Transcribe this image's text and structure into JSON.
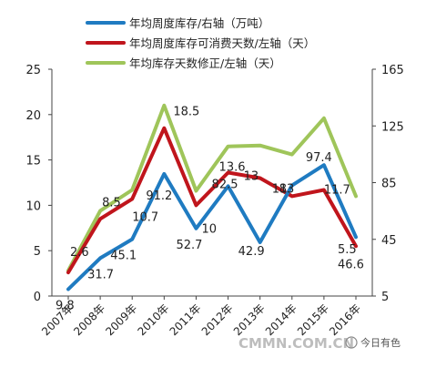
{
  "chart_data": {
    "type": "line",
    "categories": [
      "2007年",
      "2008年",
      "2009年",
      "2010年",
      "2011年",
      "2012年",
      "2013年",
      "2014年",
      "2015年",
      "2016年"
    ],
    "series": [
      {
        "name": "年均周度库存/右轴（万吨）",
        "axis": "right",
        "color": "#1f7bc1",
        "values": [
          9.8,
          31.7,
          45.1,
          91.2,
          52.7,
          82.5,
          42.9,
          83,
          97.4,
          46.6
        ]
      },
      {
        "name": "年均周度库存可消费天数/左轴（天）",
        "axis": "left",
        "color": "#c0151c",
        "values": [
          2.6,
          8.5,
          10.7,
          18.5,
          10,
          13.6,
          13,
          11,
          11.7,
          5.5
        ]
      },
      {
        "name": "年均库存天数修正/左轴（天）",
        "axis": "left",
        "color": "#9fc55a",
        "values": [
          2.8,
          9.4,
          11.7,
          21,
          11.6,
          16.5,
          16.6,
          15.6,
          19.6,
          11
        ]
      }
    ],
    "data_labels": [
      {
        "text": "2.6",
        "series": 1,
        "index": 0
      },
      {
        "text": "9.8",
        "series": 0,
        "index": 0
      },
      {
        "text": "8.5",
        "series": 1,
        "index": 1
      },
      {
        "text": "31.7",
        "series": 0,
        "index": 1
      },
      {
        "text": "10.7",
        "series": 1,
        "index": 2
      },
      {
        "text": "45.1",
        "series": 0,
        "index": 2
      },
      {
        "text": "18.5",
        "series": 1,
        "index": 3
      },
      {
        "text": "91.2",
        "series": 0,
        "index": 3
      },
      {
        "text": "10",
        "series": 1,
        "index": 4
      },
      {
        "text": "52.7",
        "series": 0,
        "index": 4
      },
      {
        "text": "13.6",
        "series": 1,
        "index": 5
      },
      {
        "text": "82.5",
        "series": 0,
        "index": 5
      },
      {
        "text": "13",
        "series": 1,
        "index": 6
      },
      {
        "text": "42.9",
        "series": 0,
        "index": 6
      },
      {
        "text": "83",
        "series": 0,
        "index": 7
      },
      {
        "text": "11",
        "series": 1,
        "index": 7
      },
      {
        "text": "97.4",
        "series": 0,
        "index": 8
      },
      {
        "text": "11.7",
        "series": 1,
        "index": 8
      },
      {
        "text": "5.5",
        "series": 1,
        "index": 9
      },
      {
        "text": "46.6",
        "series": 0,
        "index": 9
      }
    ],
    "left_axis": {
      "min": 0,
      "max": 25,
      "ticks": [
        0,
        5,
        10,
        15,
        20,
        25
      ]
    },
    "right_axis": {
      "min": 5,
      "max": 165,
      "ticks": [
        5,
        45,
        85,
        125,
        165
      ]
    },
    "grid": false,
    "legend_position": "top"
  },
  "watermark": {
    "text": "CMMN.COM.CN",
    "badge": "今日有色"
  }
}
